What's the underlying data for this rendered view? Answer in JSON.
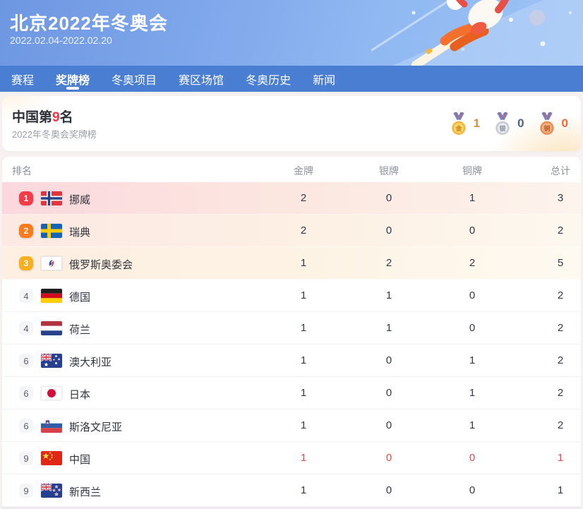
{
  "colors": {
    "nav_blue": "#4a7ed2",
    "accent_red": "#f5333f",
    "rank1_badge": "#f43b47",
    "rank2_badge": "#fb7a1c",
    "rank3_badge": "#f9af1f",
    "gold_count": "#cf9146",
    "silver_count": "#4a6285",
    "bronze_count": "#f2663a",
    "china_row_highlight": "#f4434b"
  },
  "header": {
    "title": "北京2022年冬奥会",
    "dates": "2022.02.04-2022.02.20"
  },
  "nav": {
    "items": [
      {
        "id": "schedule",
        "label": "赛程",
        "active": false
      },
      {
        "id": "medals",
        "label": "奖牌榜",
        "active": true
      },
      {
        "id": "events",
        "label": "冬奥项目",
        "active": false
      },
      {
        "id": "venues",
        "label": "赛区场馆",
        "active": false
      },
      {
        "id": "history",
        "label": "冬奥历史",
        "active": false
      },
      {
        "id": "news",
        "label": "新闻",
        "active": false
      }
    ]
  },
  "summary": {
    "title_prefix": "中国第",
    "title_rank": "9",
    "title_suffix": "名",
    "subtitle": "2022年冬奥会奖牌榜",
    "medals": [
      {
        "type": "gold",
        "medal_label": "金",
        "count": "1"
      },
      {
        "type": "silver",
        "medal_label": "银",
        "count": "0"
      },
      {
        "type": "bronze",
        "medal_label": "铜",
        "count": "0"
      }
    ]
  },
  "table": {
    "headers": {
      "rank": "排名",
      "gold": "金牌",
      "silver": "银牌",
      "bronze": "铜牌",
      "total": "总计"
    },
    "rows": [
      {
        "rank": "1",
        "country": "挪威",
        "flag": "norway",
        "gold": "2",
        "silver": "0",
        "bronze": "1",
        "total": "3",
        "style": "top1"
      },
      {
        "rank": "2",
        "country": "瑞典",
        "flag": "sweden",
        "gold": "2",
        "silver": "0",
        "bronze": "0",
        "total": "2",
        "style": "top2"
      },
      {
        "rank": "3",
        "country": "俄罗斯奥委会",
        "flag": "roc",
        "gold": "1",
        "silver": "2",
        "bronze": "2",
        "total": "5",
        "style": "top3"
      },
      {
        "rank": "4",
        "country": "德国",
        "flag": "germany",
        "gold": "1",
        "silver": "1",
        "bronze": "0",
        "total": "2",
        "style": ""
      },
      {
        "rank": "4",
        "country": "荷兰",
        "flag": "netherlands",
        "gold": "1",
        "silver": "1",
        "bronze": "0",
        "total": "2",
        "style": ""
      },
      {
        "rank": "6",
        "country": "澳大利亚",
        "flag": "australia",
        "gold": "1",
        "silver": "0",
        "bronze": "1",
        "total": "2",
        "style": ""
      },
      {
        "rank": "6",
        "country": "日本",
        "flag": "japan",
        "gold": "1",
        "silver": "0",
        "bronze": "1",
        "total": "2",
        "style": ""
      },
      {
        "rank": "6",
        "country": "斯洛文尼亚",
        "flag": "slovenia",
        "gold": "1",
        "silver": "0",
        "bronze": "1",
        "total": "2",
        "style": ""
      },
      {
        "rank": "9",
        "country": "中国",
        "flag": "china",
        "gold": "1",
        "silver": "0",
        "bronze": "0",
        "total": "1",
        "style": "highlight"
      },
      {
        "rank": "9",
        "country": "新西兰",
        "flag": "new-zealand",
        "gold": "1",
        "silver": "0",
        "bronze": "0",
        "total": "1",
        "style": ""
      }
    ]
  }
}
